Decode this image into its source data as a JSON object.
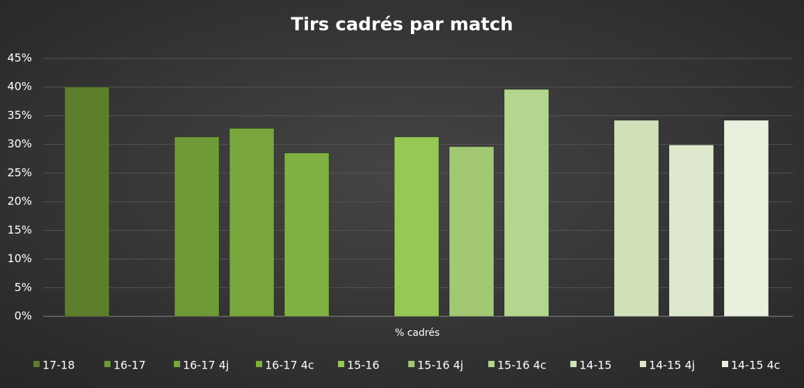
{
  "chart_data": {
    "type": "bar",
    "title": "Tirs cadrés par match",
    "categories": [
      "% cadrés"
    ],
    "series": [
      {
        "name": "17-18",
        "color": "#5d7e2c",
        "values": [
          40.0
        ]
      },
      {
        "name": "16-17",
        "color": "#6f9a38",
        "values": [
          31.3
        ]
      },
      {
        "name": "16-17 4j",
        "color": "#78a63c",
        "values": [
          32.8
        ]
      },
      {
        "name": "16-17 4c",
        "color": "#80b042",
        "values": [
          28.5
        ]
      },
      {
        "name": "15-16",
        "color": "#95c854",
        "values": [
          31.3
        ]
      },
      {
        "name": "15-16 4j",
        "color": "#a2c874",
        "values": [
          29.6
        ]
      },
      {
        "name": "15-16 4c",
        "color": "#b3d58e",
        "values": [
          39.6
        ]
      },
      {
        "name": "14-15",
        "color": "#d0e1ba",
        "values": [
          34.2
        ]
      },
      {
        "name": "14-15 4j",
        "color": "#dde8cc",
        "values": [
          29.9
        ]
      },
      {
        "name": "14-15 4c",
        "color": "#e9f0de",
        "values": [
          34.2
        ]
      }
    ],
    "ylim": [
      0,
      45
    ],
    "yticks": [
      {
        "value": 0,
        "label": "0%"
      },
      {
        "value": 5,
        "label": "5%"
      },
      {
        "value": 10,
        "label": "10%"
      },
      {
        "value": 15,
        "label": "15%"
      },
      {
        "value": 20,
        "label": "20%"
      },
      {
        "value": 25,
        "label": "25%"
      },
      {
        "value": 30,
        "label": "30%"
      },
      {
        "value": 35,
        "label": "35%"
      },
      {
        "value": 40,
        "label": "40%"
      },
      {
        "value": 45,
        "label": "45%"
      }
    ],
    "grid": true,
    "legend": "bottom"
  }
}
